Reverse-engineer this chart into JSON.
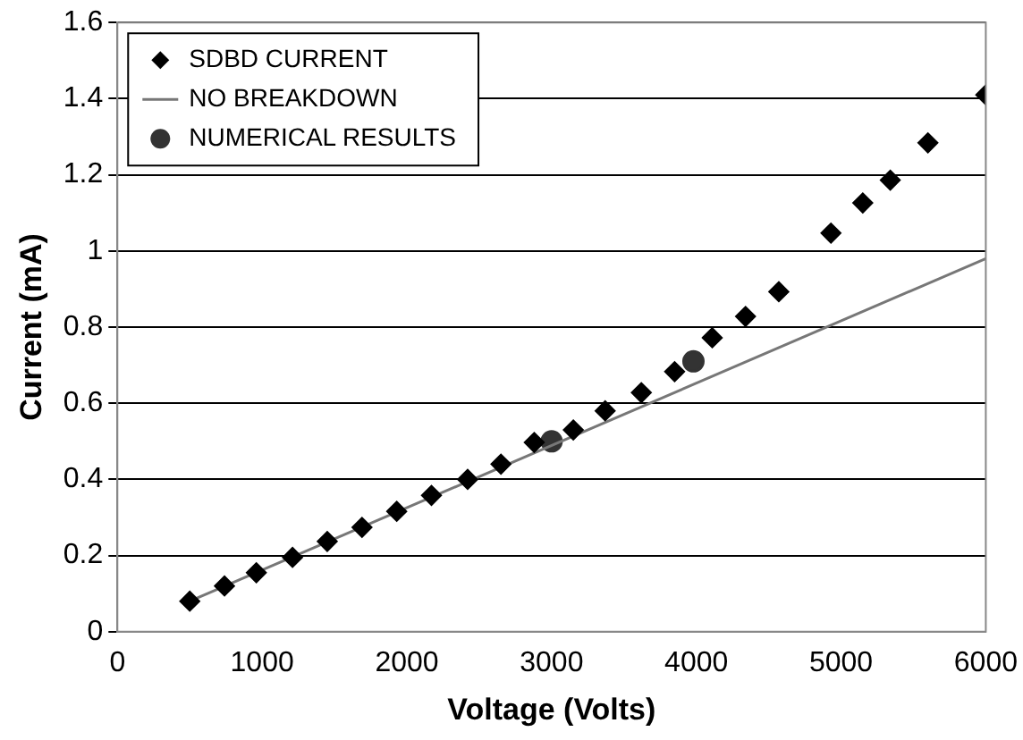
{
  "chart_data": {
    "type": "scatter",
    "xlabel": "Voltage (Volts)",
    "ylabel": "Current (mA)",
    "xlim": [
      0,
      6000
    ],
    "xticks": [
      0,
      1000,
      2000,
      3000,
      4000,
      5000,
      6000
    ],
    "ylim": [
      0,
      1.6
    ],
    "yticks": [
      0,
      {
        "value": 0.2,
        "label": "0.2"
      },
      {
        "value": 0.4,
        "label": "0.4"
      },
      {
        "value": 0.6,
        "label": "0.6"
      },
      {
        "value": 0.8,
        "label": "0.8"
      },
      1,
      {
        "value": 1.2,
        "label": "1.2"
      },
      {
        "value": 1.4,
        "label": "1.4"
      },
      {
        "value": 1.6,
        "label": "1.6"
      }
    ],
    "grid": "y",
    "legend": "top left",
    "series": [
      {
        "name": "SDBD CURRENT",
        "type": "scatter",
        "marker": "diamond",
        "color": "#000000",
        "x": [
          500,
          740,
          960,
          1210,
          1450,
          1690,
          1930,
          2170,
          2420,
          2650,
          2880,
          3150,
          3370,
          3620,
          3850,
          4110,
          4340,
          4570,
          4930,
          5150,
          5340,
          5600,
          6000
        ],
        "values": [
          0.08,
          0.12,
          0.155,
          0.195,
          0.237,
          0.274,
          0.316,
          0.358,
          0.4,
          0.44,
          0.497,
          0.53,
          0.58,
          0.628,
          0.683,
          0.772,
          0.828,
          0.893,
          1.047,
          1.126,
          1.186,
          1.284,
          1.41
        ]
      },
      {
        "name": "NO BREAKDOWN",
        "type": "line",
        "marker": "none",
        "line_style": "solid",
        "color": "#777777",
        "x": [
          500,
          6000
        ],
        "values": [
          0.08,
          0.98
        ]
      },
      {
        "name": "NUMERICAL RESULTS",
        "type": "scatter",
        "marker": "circle",
        "color": "#333333",
        "x": [
          3000,
          3980
        ],
        "values": [
          0.5,
          0.71
        ]
      }
    ]
  }
}
